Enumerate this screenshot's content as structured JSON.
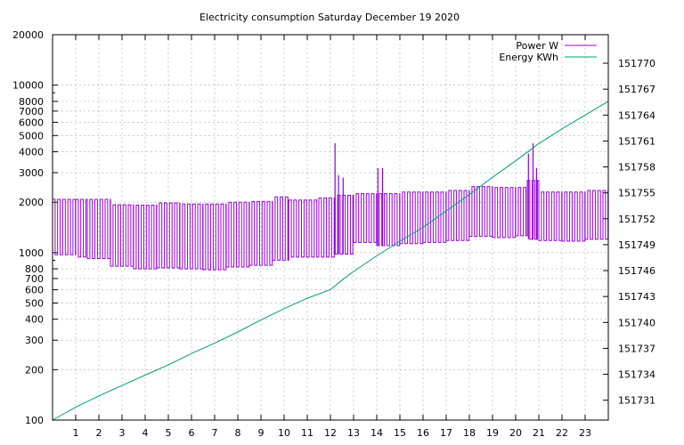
{
  "chart_data": {
    "type": "line",
    "title": "Electricity consumption Saturday December 19 2020",
    "xlabel": "",
    "ylabel": "",
    "xlim": [
      0,
      24
    ],
    "x_ticks": [
      "1",
      "2",
      "3",
      "4",
      "5",
      "6",
      "7",
      "8",
      "9",
      "10",
      "11",
      "12",
      "13",
      "14",
      "15",
      "16",
      "17",
      "18",
      "19",
      "20",
      "21",
      "22",
      "23"
    ],
    "y_left": {
      "scale": "log",
      "ylim": [
        100,
        20000
      ],
      "ticks": [
        {
          "value": 100,
          "label": "100"
        },
        {
          "value": 200,
          "label": "200"
        },
        {
          "value": 300,
          "label": "300"
        },
        {
          "value": 400,
          "label": "400"
        },
        {
          "value": 500,
          "label": "500"
        },
        {
          "value": 600,
          "label": "600"
        },
        {
          "value": 700,
          "label": "700"
        },
        {
          "value": 800,
          "label": "800"
        },
        {
          "value": 1000,
          "label": "1000"
        },
        {
          "value": 2000,
          "label": "2000"
        },
        {
          "value": 3000,
          "label": "3000"
        },
        {
          "value": 4000,
          "label": "4000"
        },
        {
          "value": 5000,
          "label": "5000"
        },
        {
          "value": 6000,
          "label": "6000"
        },
        {
          "value": 7000,
          "label": "7000"
        },
        {
          "value": 8000,
          "label": "8000"
        },
        {
          "value": 10000,
          "label": "10000"
        },
        {
          "value": 20000,
          "label": "20000"
        }
      ]
    },
    "y_right": {
      "scale": "linear",
      "ylim": [
        151728.7,
        151773.3
      ],
      "ticks": [
        "151731",
        "151734",
        "151737",
        "151740",
        "151743",
        "151746",
        "151749",
        "151752",
        "151755",
        "151758",
        "151761",
        "151764",
        "151767",
        "151770"
      ]
    },
    "grid": true,
    "legend_position": "top-right",
    "series": [
      {
        "name": "Power W",
        "axis": "left",
        "color": "#9400d3",
        "segments": [
          {
            "x0": 0.0,
            "x1": 1.0,
            "low": 970,
            "high": 2080
          },
          {
            "x0": 1.0,
            "x1": 1.5,
            "low": 940,
            "high": 2080
          },
          {
            "x0": 1.5,
            "x1": 2.5,
            "low": 920,
            "high": 2080
          },
          {
            "x0": 2.5,
            "x1": 3.5,
            "low": 830,
            "high": 1930
          },
          {
            "x0": 3.5,
            "x1": 4.5,
            "low": 800,
            "high": 1920
          },
          {
            "x0": 4.5,
            "x1": 5.5,
            "low": 810,
            "high": 1980
          },
          {
            "x0": 5.5,
            "x1": 6.5,
            "low": 800,
            "high": 1950
          },
          {
            "x0": 6.5,
            "x1": 7.5,
            "low": 790,
            "high": 1950
          },
          {
            "x0": 7.5,
            "x1": 8.5,
            "low": 820,
            "high": 2000
          },
          {
            "x0": 8.5,
            "x1": 9.5,
            "low": 840,
            "high": 2020
          },
          {
            "x0": 9.5,
            "x1": 10.2,
            "low": 900,
            "high": 2150
          },
          {
            "x0": 10.2,
            "x1": 11.5,
            "low": 940,
            "high": 2060
          },
          {
            "x0": 11.5,
            "x1": 12.2,
            "low": 940,
            "high": 2120
          },
          {
            "x0": 12.2,
            "x1": 13.0,
            "low": 980,
            "high": 2200
          },
          {
            "x0": 13.0,
            "x1": 14.0,
            "low": 1150,
            "high": 2250
          },
          {
            "x0": 14.0,
            "x1": 15.0,
            "low": 1100,
            "high": 2250
          },
          {
            "x0": 15.0,
            "x1": 16.0,
            "low": 1130,
            "high": 2300
          },
          {
            "x0": 16.0,
            "x1": 17.0,
            "low": 1150,
            "high": 2300
          },
          {
            "x0": 17.0,
            "x1": 18.0,
            "low": 1180,
            "high": 2350
          },
          {
            "x0": 18.0,
            "x1": 19.0,
            "low": 1250,
            "high": 2480
          },
          {
            "x0": 19.0,
            "x1": 20.0,
            "low": 1230,
            "high": 2450
          },
          {
            "x0": 20.0,
            "x1": 20.5,
            "low": 1260,
            "high": 2450
          },
          {
            "x0": 20.5,
            "x1": 21.0,
            "low": 1200,
            "high": 2700
          },
          {
            "x0": 21.0,
            "x1": 22.0,
            "low": 1180,
            "high": 2300
          },
          {
            "x0": 22.0,
            "x1": 23.0,
            "low": 1170,
            "high": 2300
          },
          {
            "x0": 23.0,
            "x1": 24.0,
            "low": 1200,
            "high": 2350
          }
        ],
        "peaks": [
          {
            "x": 12.2,
            "value": 4500
          },
          {
            "x": 12.35,
            "value": 2900
          },
          {
            "x": 12.55,
            "value": 2800
          },
          {
            "x": 14.05,
            "value": 3200
          },
          {
            "x": 14.25,
            "value": 3200
          },
          {
            "x": 20.55,
            "value": 3900
          },
          {
            "x": 20.75,
            "value": 4500
          },
          {
            "x": 20.9,
            "value": 3200
          }
        ]
      },
      {
        "name": "Energy KWh",
        "axis": "right",
        "color": "#009e73",
        "x": [
          0,
          1,
          2,
          3,
          4,
          5,
          6,
          7,
          8,
          9,
          10,
          11,
          12,
          12.5,
          13,
          14,
          15,
          16,
          17,
          18,
          19,
          20,
          21,
          22,
          23,
          24
        ],
        "values": [
          151728.7,
          151730.2,
          151731.5,
          151732.7,
          151733.9,
          151735.1,
          151736.4,
          151737.6,
          151738.9,
          151740.3,
          151741.6,
          151742.8,
          151743.8,
          151744.9,
          151745.9,
          151747.7,
          151749.4,
          151751.0,
          151752.9,
          151754.8,
          151756.8,
          151758.7,
          151760.7,
          151762.4,
          151764.0,
          151765.6
        ]
      }
    ]
  }
}
